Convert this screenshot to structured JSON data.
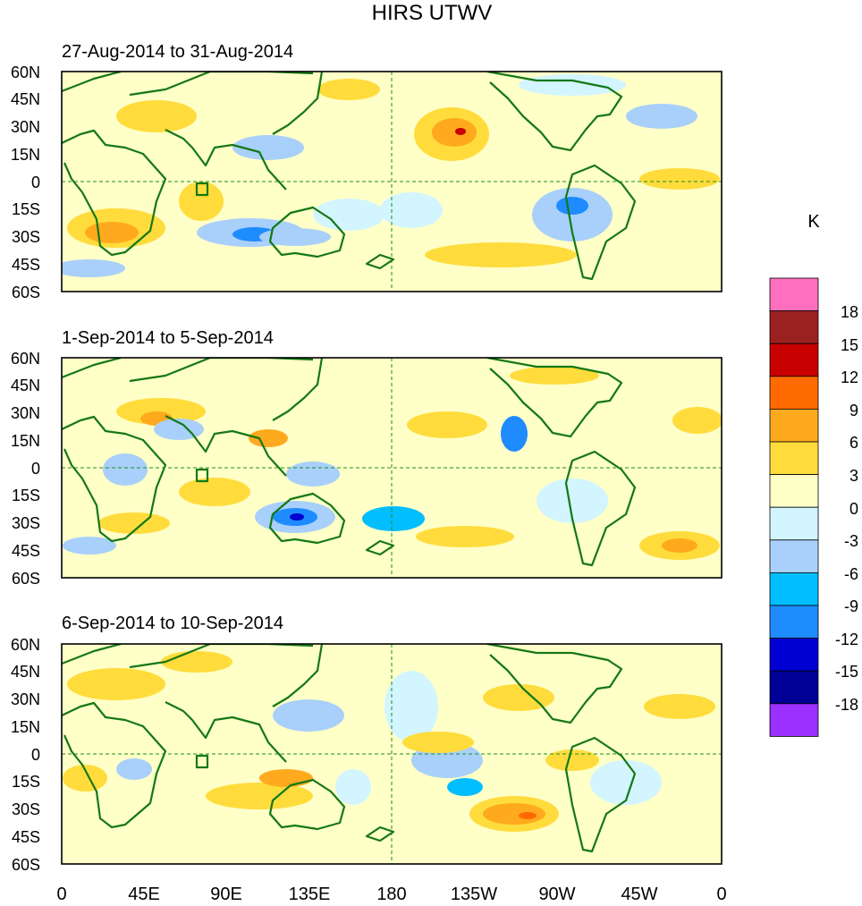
{
  "title": "HIRS UTWV",
  "panels": [
    {
      "period": "27-Aug-2014 to 31-Aug-2014"
    },
    {
      "period": "1-Sep-2014 to 5-Sep-2014"
    },
    {
      "period": "6-Sep-2014 to 10-Sep-2014"
    }
  ],
  "lat_labels": [
    "60N",
    "45N",
    "30N",
    "15N",
    "0",
    "15S",
    "30S",
    "45S",
    "60S"
  ],
  "lon_labels": [
    "0",
    "45E",
    "90E",
    "135E",
    "180",
    "135W",
    "90W",
    "45W",
    "0"
  ],
  "colorbar": {
    "unit": "K",
    "colors": [
      "#ff6fbf",
      "#9b2020",
      "#c80000",
      "#ff6a00",
      "#ffaa1e",
      "#ffdc3c",
      "#ffffc8",
      "#d2f5ff",
      "#a8d0fa",
      "#00beff",
      "#1e8cff",
      "#0000d2",
      "#000096",
      "#9b30ff"
    ],
    "labels": [
      "18",
      "15",
      "12",
      "9",
      "6",
      "3",
      "0",
      "-3",
      "-6",
      "-9",
      "-12",
      "-15",
      "-18"
    ]
  },
  "colors": {
    "coast": "#147814",
    "grid": "#1e8c1e"
  }
}
